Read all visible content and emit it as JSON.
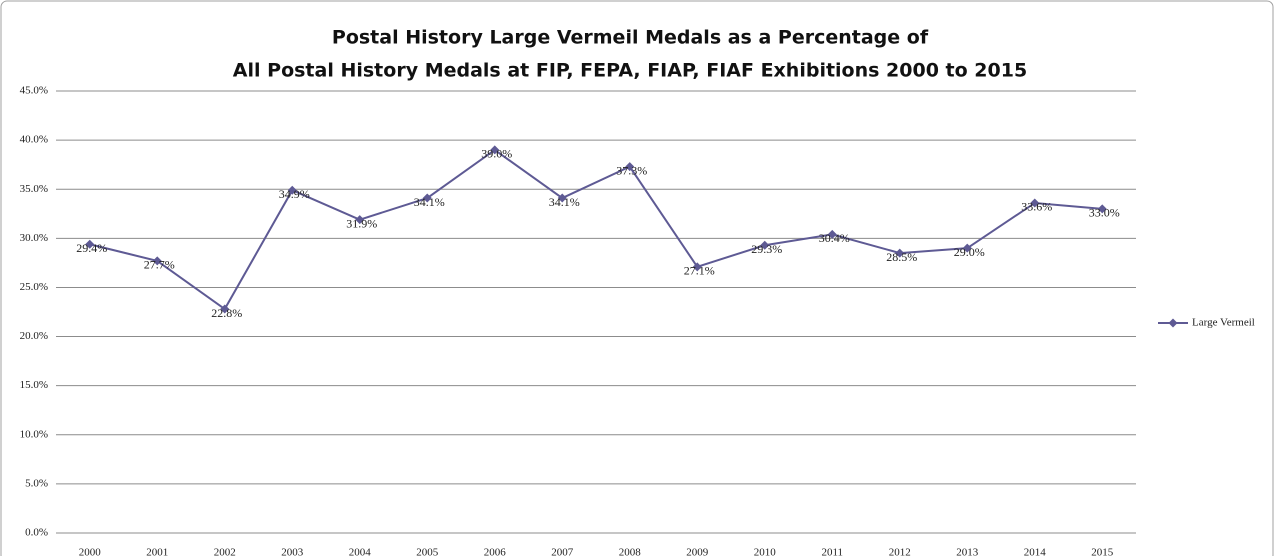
{
  "chart_data": {
    "type": "line",
    "title": [
      "Postal History Large Vermeil Medals as a Percentage of",
      "All Postal History Medals at FIP, FEPA, FIAP, FIAF Exhibitions 2000 to 2015"
    ],
    "categories": [
      "2000",
      "2001",
      "2002",
      "2003",
      "2004",
      "2005",
      "2006",
      "2007",
      "2008",
      "2009",
      "2010",
      "2011",
      "2012",
      "2013",
      "2014",
      "2015"
    ],
    "series": [
      {
        "name": "Large Vermeil",
        "color": "#5e5a94",
        "values": [
          29.4,
          27.7,
          22.8,
          34.9,
          31.9,
          34.1,
          39.0,
          34.1,
          37.3,
          27.1,
          29.3,
          30.4,
          28.5,
          29.0,
          33.6,
          33.0
        ],
        "value_labels": [
          "29.4%",
          "27.7%",
          "22.8%",
          "34.9%",
          "31.9%",
          "34.1%",
          "39.0%",
          "34.1%",
          "37.3%",
          "27.1%",
          "29.3%",
          "30.4%",
          "28.5%",
          "29.0%",
          "33.6%",
          "33.0%"
        ]
      }
    ],
    "ylim": [
      0,
      45
    ],
    "yticks": [
      {
        "value": 0,
        "label": "0.0%"
      },
      {
        "value": 5,
        "label": "5.0%"
      },
      {
        "value": 10,
        "label": "10.0%"
      },
      {
        "value": 15,
        "label": "15.0%"
      },
      {
        "value": 20,
        "label": "20.0%"
      },
      {
        "value": 25,
        "label": "25.0%"
      },
      {
        "value": 30,
        "label": "30.0%"
      },
      {
        "value": 35,
        "label": "35.0%"
      },
      {
        "value": 40,
        "label": "40.0%"
      },
      {
        "value": 45,
        "label": "45.0%"
      }
    ],
    "grid": true,
    "legend": "right"
  }
}
